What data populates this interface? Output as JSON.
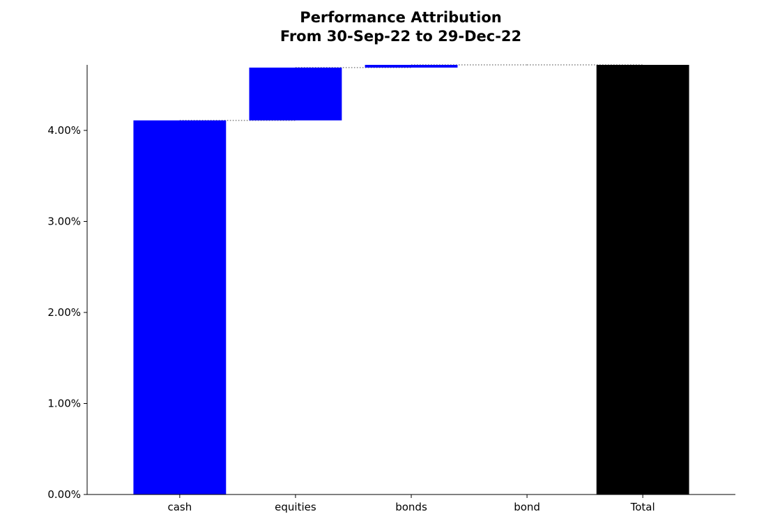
{
  "chart_data": {
    "type": "bar",
    "subtype": "waterfall",
    "title": "Performance Attribution",
    "subtitle": "From 30-Sep-22 to 29-Dec-22",
    "xlabel": "",
    "ylabel": "",
    "categories": [
      "cash",
      "equities",
      "bonds",
      "bond",
      "Total"
    ],
    "values": [
      4.11,
      0.58,
      0.03,
      0.0,
      4.72
    ],
    "is_total": [
      false,
      false,
      false,
      false,
      true
    ],
    "ylim": [
      0,
      4.72
    ],
    "yticks": [
      0,
      1,
      2,
      3,
      4
    ],
    "ytick_labels": [
      "0.00%",
      "1.00%",
      "2.00%",
      "3.00%",
      "4.00%"
    ],
    "colors": {
      "increase": "#0000ff",
      "total": "#000000",
      "connector": "#808080"
    },
    "connectors": "dotted",
    "grid": false,
    "legend": "none"
  }
}
